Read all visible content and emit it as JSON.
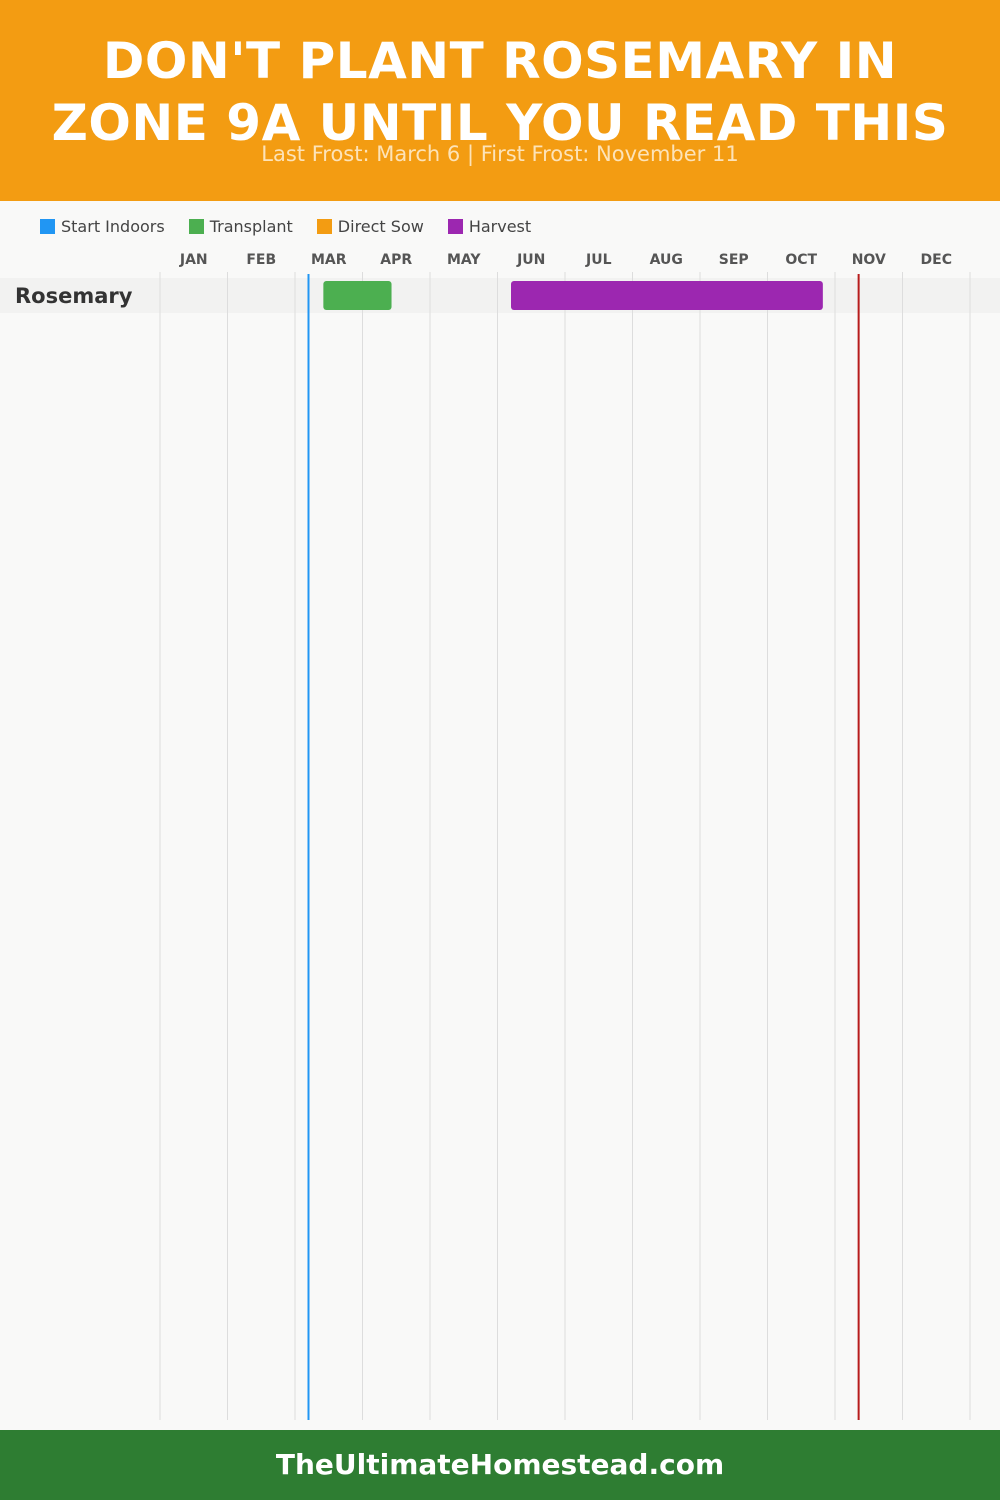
{
  "header": {
    "title": "DON'T PLANT ROSEMARY IN\nZONE 9A UNTIL YOU READ THIS",
    "subtitle": "Last Frost: March 6 | First Frost: November 11"
  },
  "legend": [
    {
      "label": "Start Indoors",
      "color": "#2196f3"
    },
    {
      "label": "Transplant",
      "color": "#4caf50"
    },
    {
      "label": "Direct Sow",
      "color": "#f39c12"
    },
    {
      "label": "Harvest",
      "color": "#9c27b0"
    }
  ],
  "chart_data": {
    "type": "gantt",
    "months": [
      "JAN",
      "FEB",
      "MAR",
      "APR",
      "MAY",
      "JUN",
      "JUL",
      "AUG",
      "SEP",
      "OCT",
      "NOV",
      "DEC"
    ],
    "rows": [
      {
        "label": "Rosemary",
        "bars": [
          {
            "phase": "Transplant",
            "start": "Mar 15",
            "end": "Apr 15",
            "start_month": 2.42,
            "end_month": 3.43,
            "color": "#4caf50"
          },
          {
            "phase": "Harvest",
            "start": "Jun 1",
            "end": "Oct 31",
            "start_month": 5.2,
            "end_month": 9.82,
            "color": "#9c27b0"
          }
        ]
      }
    ],
    "markers": [
      {
        "label": "Last Frost",
        "date": "March 6",
        "month": 2.2,
        "color": "#2196f3"
      },
      {
        "label": "First Frost",
        "date": "November 11",
        "month": 10.35,
        "color": "#b71c1c"
      }
    ]
  },
  "footer": {
    "text": "TheUltimateHomestead.com"
  }
}
